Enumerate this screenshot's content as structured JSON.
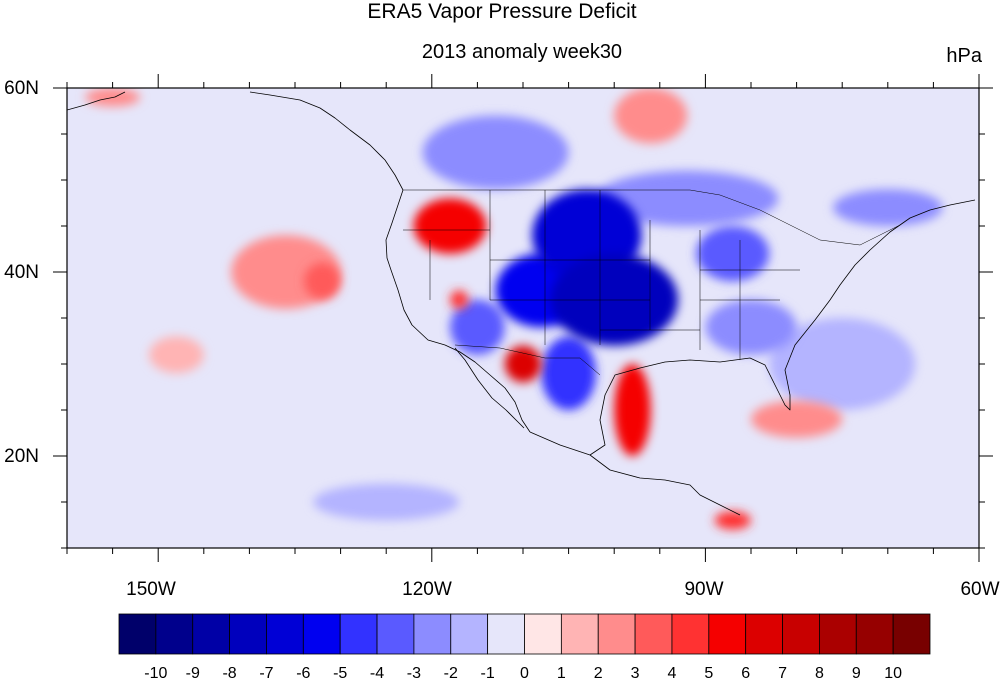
{
  "title": "ERA5 Vapor Pressure Deficit",
  "subtitle": "2013 anomaly week30",
  "units": "hPa",
  "map": {
    "lon_range": [
      -160,
      -60
    ],
    "lat_range": [
      10,
      60
    ],
    "projection": "cylindrical equidistant",
    "x_tick_labels": [
      "150W",
      "120W",
      "90W",
      "60W"
    ],
    "x_tick_values": [
      -150,
      -120,
      -90,
      -60
    ],
    "y_tick_labels": [
      "20N",
      "40N",
      "60N"
    ],
    "y_tick_values": [
      20,
      40,
      60
    ]
  },
  "colorbar": {
    "labels": [
      "-10",
      "-9",
      "-8",
      "-7",
      "-6",
      "-5",
      "-4",
      "-3",
      "-2",
      "-1",
      "0",
      "1",
      "2",
      "3",
      "4",
      "5",
      "6",
      "7",
      "8",
      "9",
      "10"
    ],
    "colors": [
      "#00006a",
      "#00008c",
      "#0000a6",
      "#0000bd",
      "#0000d6",
      "#0000f0",
      "#3232ff",
      "#5a5aff",
      "#8c8cff",
      "#b4b4ff",
      "#e6e6fa",
      "#ffe6e6",
      "#ffb4b4",
      "#ff8c8c",
      "#ff5a5a",
      "#ff3232",
      "#f50000",
      "#dc0000",
      "#c80000",
      "#aa0000",
      "#960000",
      "#780000"
    ]
  },
  "chart_data": {
    "type": "heatmap",
    "title": "ERA5 Vapor Pressure Deficit",
    "subtitle": "2013 anomaly week30",
    "units": "hPa",
    "x_range": [
      -160,
      -60
    ],
    "y_range": [
      10,
      60
    ],
    "colorbar_levels": [
      -10,
      -9,
      -8,
      -7,
      -6,
      -5,
      -4,
      -3,
      -2,
      -1,
      0,
      1,
      2,
      3,
      4,
      5,
      6,
      7,
      8,
      9,
      10
    ],
    "anomaly_regions": [
      {
        "lon": -100,
        "lat": 37,
        "rlon": 7,
        "rlat": 5,
        "value": -8
      },
      {
        "lon": -103,
        "lat": 44,
        "rlon": 6,
        "rlat": 5,
        "value": -7
      },
      {
        "lon": -108,
        "lat": 38,
        "rlon": 5,
        "rlat": 4,
        "value": -6
      },
      {
        "lon": -105,
        "lat": 29,
        "rlon": 3,
        "rlat": 4,
        "value": -5
      },
      {
        "lon": -87,
        "lat": 42,
        "rlon": 4,
        "rlat": 3,
        "value": -4
      },
      {
        "lon": -92,
        "lat": 48,
        "rlon": 10,
        "rlat": 3,
        "value": -3
      },
      {
        "lon": -85,
        "lat": 34,
        "rlon": 5,
        "rlat": 3,
        "value": -3
      },
      {
        "lon": -115,
        "lat": 34,
        "rlon": 3,
        "rlat": 3,
        "value": -4
      },
      {
        "lon": -113,
        "lat": 53,
        "rlon": 8,
        "rlat": 4,
        "value": -3
      },
      {
        "lon": -70,
        "lat": 47,
        "rlon": 6,
        "rlat": 2,
        "value": -3
      },
      {
        "lon": -75,
        "lat": 30,
        "rlon": 8,
        "rlat": 5,
        "value": -2
      },
      {
        "lon": -125,
        "lat": 15,
        "rlon": 8,
        "rlat": 2,
        "value": -2
      },
      {
        "lon": -150,
        "lat": 43,
        "rlon": 5,
        "rlat": 3,
        "value": -1
      },
      {
        "lon": -118,
        "lat": 45,
        "rlon": 4,
        "rlat": 3,
        "value": 5
      },
      {
        "lon": -117,
        "lat": 37,
        "rlon": 1,
        "rlat": 1,
        "value": 4
      },
      {
        "lon": -110,
        "lat": 30,
        "rlon": 2,
        "rlat": 2,
        "value": 6
      },
      {
        "lon": -98,
        "lat": 25,
        "rlon": 2,
        "rlat": 5,
        "value": 5
      },
      {
        "lon": -136,
        "lat": 40,
        "rlon": 6,
        "rlat": 4,
        "value": 2
      },
      {
        "lon": -132,
        "lat": 39,
        "rlon": 2,
        "rlat": 2,
        "value": 3
      },
      {
        "lon": -96,
        "lat": 57,
        "rlon": 4,
        "rlat": 3,
        "value": 2
      },
      {
        "lon": -80,
        "lat": 24,
        "rlon": 5,
        "rlat": 2,
        "value": 2
      },
      {
        "lon": -87,
        "lat": 13,
        "rlon": 2,
        "rlat": 1,
        "value": 4
      },
      {
        "lon": -148,
        "lat": 31,
        "rlon": 3,
        "rlat": 2,
        "value": 1
      },
      {
        "lon": -155,
        "lat": 59,
        "rlon": 3,
        "rlat": 1,
        "value": 2
      }
    ]
  }
}
